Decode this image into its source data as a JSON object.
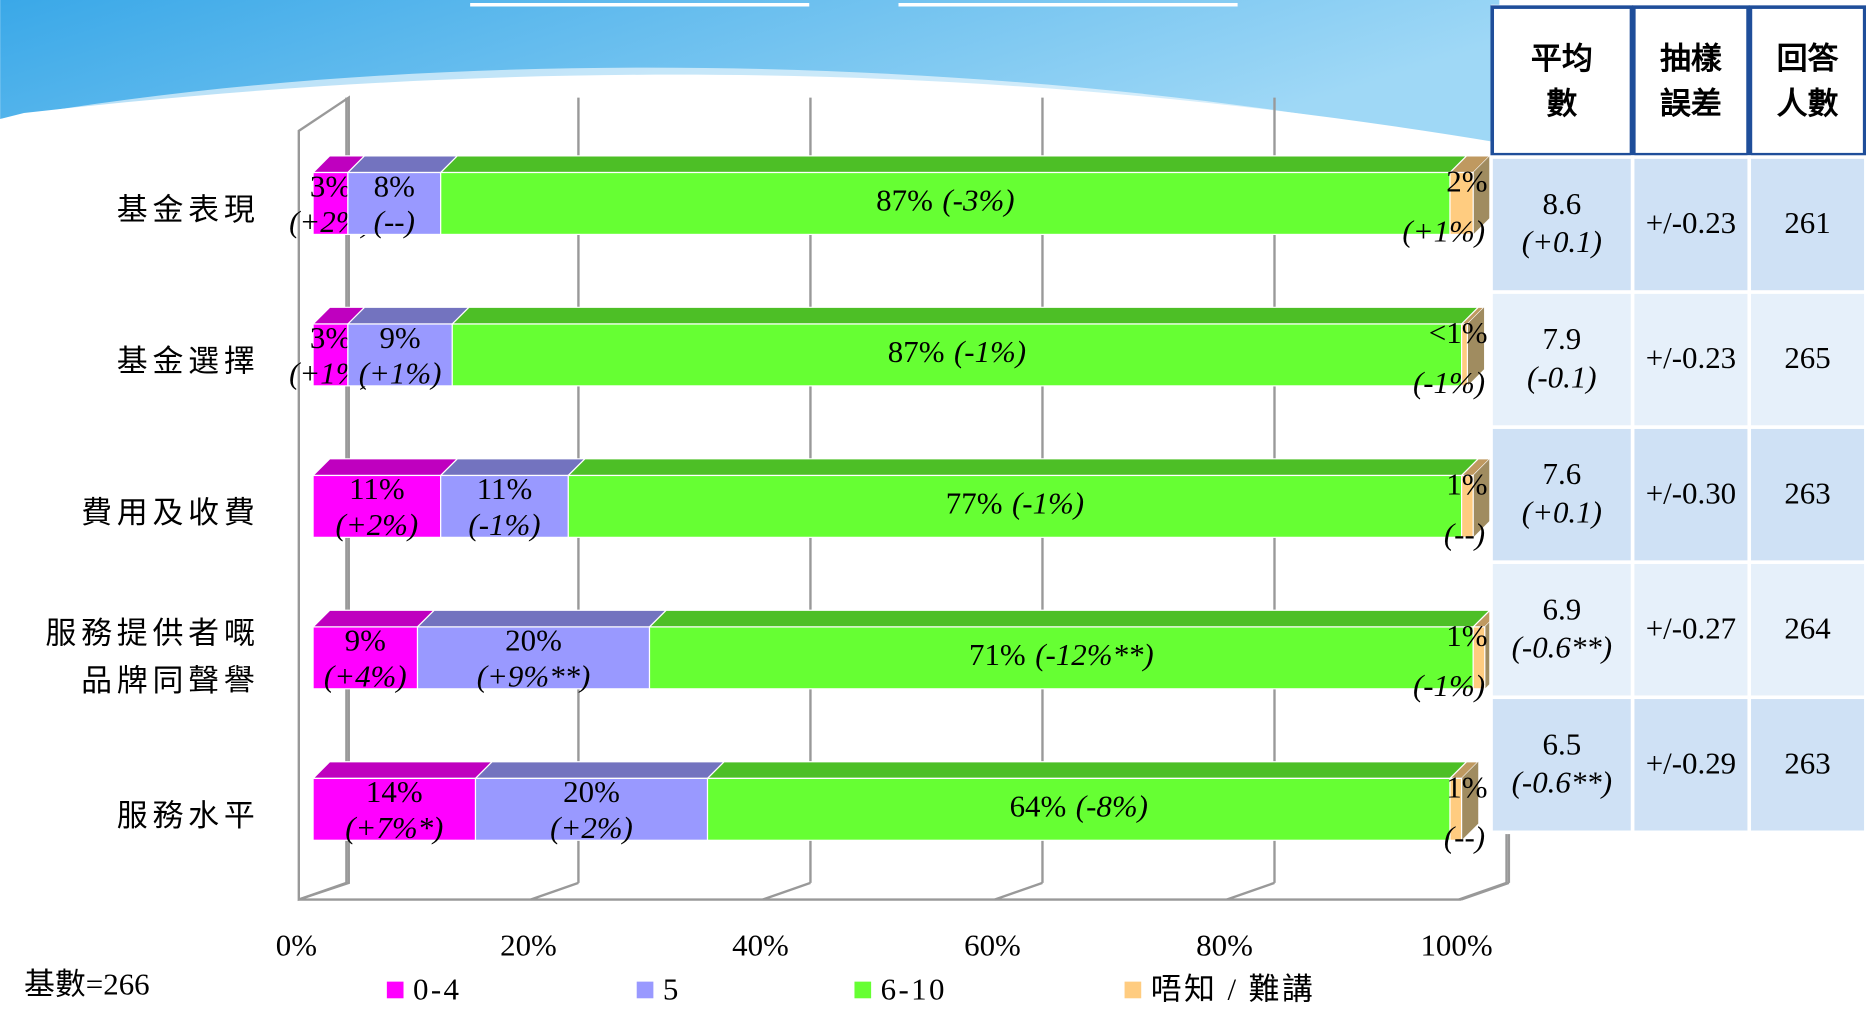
{
  "chart_data": {
    "type": "bar",
    "orientation": "horizontal",
    "stacked": true,
    "categories": [
      "基金表現",
      "基金選擇",
      "費用及收費",
      [
        "服務提供者嘅",
        "品牌同聲譽"
      ],
      "服務水平"
    ],
    "series": [
      {
        "name": "0-4",
        "color": "#ff00ff",
        "values": [
          3,
          3,
          11,
          9,
          14
        ],
        "value_labels": [
          "3%",
          "3%",
          "11%",
          "9%",
          "14%"
        ],
        "change_labels": [
          "(+2%)",
          "(+1%)",
          "(+2%)",
          "(+4%)",
          "(+7%*)"
        ]
      },
      {
        "name": "5",
        "color": "#9999ff",
        "values": [
          8,
          9,
          11,
          20,
          20
        ],
        "value_labels": [
          "8%",
          "9%",
          "11%",
          "20%",
          "20%"
        ],
        "change_labels": [
          "(--)",
          "(+1%)",
          "(-1%)",
          "(+9%**)",
          "(+2%)"
        ]
      },
      {
        "name": "6-10",
        "color": "#66ff33",
        "values": [
          87,
          87,
          77,
          71,
          64
        ],
        "value_labels": [
          "87%",
          "87%",
          "77%",
          "71%",
          "64%"
        ],
        "change_labels": [
          "(-3%)",
          "(-1%)",
          "(-1%)",
          "(-12%**)",
          "(-8%)"
        ]
      },
      {
        "name": "唔知 / 難講",
        "color": "#ffcc80",
        "values": [
          2,
          0.5,
          1,
          1,
          1
        ],
        "value_labels": [
          "2%",
          "<1%",
          "1%",
          "1%",
          "1%"
        ],
        "change_labels": [
          "(+1%)",
          "(-1%)",
          "(--)",
          "(-1%)",
          "(--)"
        ]
      }
    ],
    "xlim": [
      0,
      100
    ],
    "xticks": [
      {
        "value": 0,
        "label": "0%"
      },
      {
        "value": 20,
        "label": "20%"
      },
      {
        "value": 40,
        "label": "40%"
      },
      {
        "value": 60,
        "label": "60%"
      },
      {
        "value": 80,
        "label": "80%"
      },
      {
        "value": 100,
        "label": "100%"
      }
    ],
    "grid": true,
    "legend": "bottom",
    "note": "基數=266"
  },
  "table": {
    "headers": [
      [
        "平均",
        "數"
      ],
      [
        "抽樣",
        "誤差"
      ],
      [
        "回答",
        "人數"
      ]
    ],
    "rows": [
      [
        [
          "8.6",
          "(+0.1)"
        ],
        "+/-0.23",
        "261"
      ],
      [
        [
          "7.9",
          "(-0.1)"
        ],
        "+/-0.23",
        "265"
      ],
      [
        [
          "7.6",
          "(+0.1)"
        ],
        "+/-0.30",
        "263"
      ],
      [
        [
          "6.9",
          "(-0.6**)"
        ],
        "+/-0.27",
        "264"
      ],
      [
        [
          "6.5",
          "(-0.6**)"
        ],
        "+/-0.29",
        "263"
      ]
    ]
  }
}
